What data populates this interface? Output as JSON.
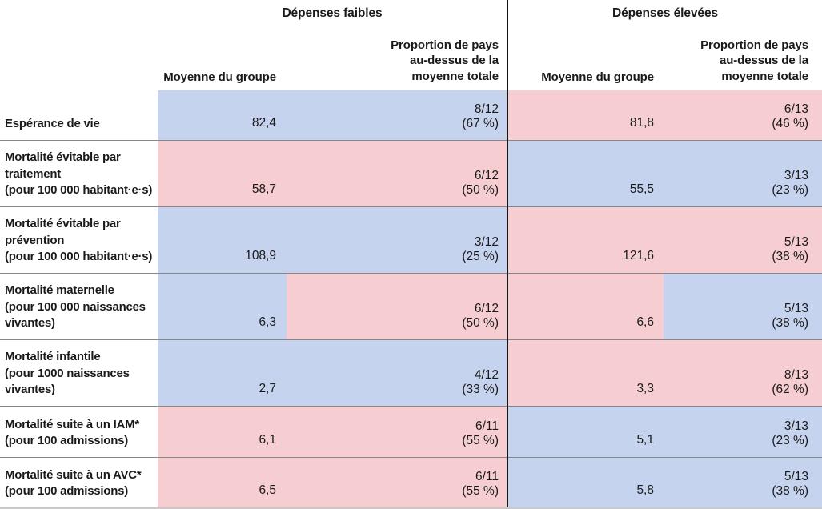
{
  "table": {
    "colors": {
      "blue": "#c6d3ee",
      "pink": "#f6ced1"
    },
    "groups": {
      "low": {
        "title": "Dépenses faibles"
      },
      "high": {
        "title": "Dépenses élevées"
      }
    },
    "column_headers": {
      "mean": "Moyenne du groupe",
      "proportion": "Proportion de pays\nau-dessus de la\nmoyenne totale"
    },
    "rows": [
      {
        "label": "Espérance de vie",
        "low": {
          "mean": "82,4",
          "proportion": "8/12\n(67 %)",
          "mean_color": "blue",
          "proportion_color": "blue"
        },
        "high": {
          "mean": "81,8",
          "proportion": "6/13\n(46 %)",
          "mean_color": "pink",
          "proportion_color": "pink"
        }
      },
      {
        "label": "Mortalité évitable par\ntraitement\n(pour 100 000 habitant·e·s)",
        "low": {
          "mean": "58,7",
          "proportion": "6/12\n(50 %)",
          "mean_color": "pink",
          "proportion_color": "pink"
        },
        "high": {
          "mean": "55,5",
          "proportion": "3/13\n(23 %)",
          "mean_color": "blue",
          "proportion_color": "blue"
        }
      },
      {
        "label": "Mortalité évitable par\nprévention\n(pour 100 000 habitant·e·s)",
        "low": {
          "mean": "108,9",
          "proportion": "3/12\n(25 %)",
          "mean_color": "blue",
          "proportion_color": "blue"
        },
        "high": {
          "mean": "121,6",
          "proportion": "5/13\n(38 %)",
          "mean_color": "pink",
          "proportion_color": "pink"
        }
      },
      {
        "label": "Mortalité maternelle\n(pour 100 000 naissances\nvivantes)",
        "low": {
          "mean": "6,3",
          "proportion": "6/12\n(50 %)",
          "mean_color": "blue",
          "proportion_color": "pink"
        },
        "high": {
          "mean": "6,6",
          "proportion": "5/13\n(38 %)",
          "mean_color": "pink",
          "proportion_color": "blue"
        }
      },
      {
        "label": "Mortalité infantile\n(pour 1000 naissances\nvivantes)",
        "low": {
          "mean": "2,7",
          "proportion": "4/12\n(33 %)",
          "mean_color": "blue",
          "proportion_color": "blue"
        },
        "high": {
          "mean": "3,3",
          "proportion": "8/13\n(62 %)",
          "mean_color": "pink",
          "proportion_color": "pink"
        }
      },
      {
        "label": "Mortalité suite à un IAM*\n(pour 100 admissions)",
        "low": {
          "mean": "6,1",
          "proportion": "6/11\n(55 %)",
          "mean_color": "pink",
          "proportion_color": "pink"
        },
        "high": {
          "mean": "5,1",
          "proportion": "3/13\n(23 %)",
          "mean_color": "blue",
          "proportion_color": "blue"
        }
      },
      {
        "label": "Mortalité suite à un AVC*\n(pour 100 admissions)",
        "low": {
          "mean": "6,5",
          "proportion": "6/11\n(55 %)",
          "mean_color": "pink",
          "proportion_color": "pink"
        },
        "high": {
          "mean": "5,8",
          "proportion": "5/13\n(38 %)",
          "mean_color": "blue",
          "proportion_color": "blue"
        }
      }
    ]
  }
}
